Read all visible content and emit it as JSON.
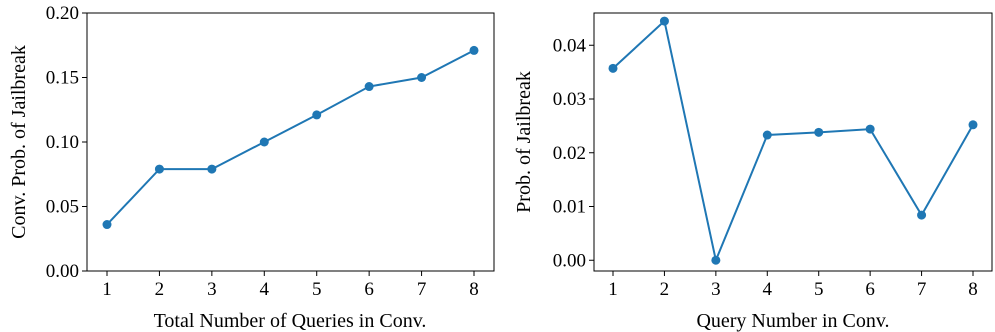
{
  "chart_data": [
    {
      "type": "line",
      "title": "",
      "xlabel": "Total Number of Queries in Conv.",
      "ylabel": "Conv. Prob. of Jailbreak",
      "x": [
        1,
        2,
        3,
        4,
        5,
        6,
        7,
        8
      ],
      "xticks": [
        "1",
        "2",
        "3",
        "4",
        "5",
        "6",
        "7",
        "8"
      ],
      "yticks": [
        "0.00",
        "0.05",
        "0.10",
        "0.15",
        "0.20"
      ],
      "ylim": [
        0,
        0.2
      ],
      "grid": false,
      "series": [
        {
          "values": [
            0.036,
            0.079,
            0.079,
            0.1,
            0.121,
            0.143,
            0.15,
            0.171
          ],
          "color": "#1f77b4"
        }
      ]
    },
    {
      "type": "line",
      "title": "",
      "xlabel": "Query Number in Conv.",
      "ylabel": "Prob. of Jailbreak",
      "x": [
        1,
        2,
        3,
        4,
        5,
        6,
        7,
        8
      ],
      "xticks": [
        "1",
        "2",
        "3",
        "4",
        "5",
        "6",
        "7",
        "8"
      ],
      "yticks": [
        "0.00",
        "0.01",
        "0.02",
        "0.03",
        "0.04"
      ],
      "ylim": [
        -0.002,
        0.046
      ],
      "grid": false,
      "series": [
        {
          "values": [
            0.0357,
            0.0445,
            0.0,
            0.0233,
            0.0238,
            0.0244,
            0.0084,
            0.0252
          ],
          "color": "#1f77b4"
        }
      ]
    }
  ]
}
